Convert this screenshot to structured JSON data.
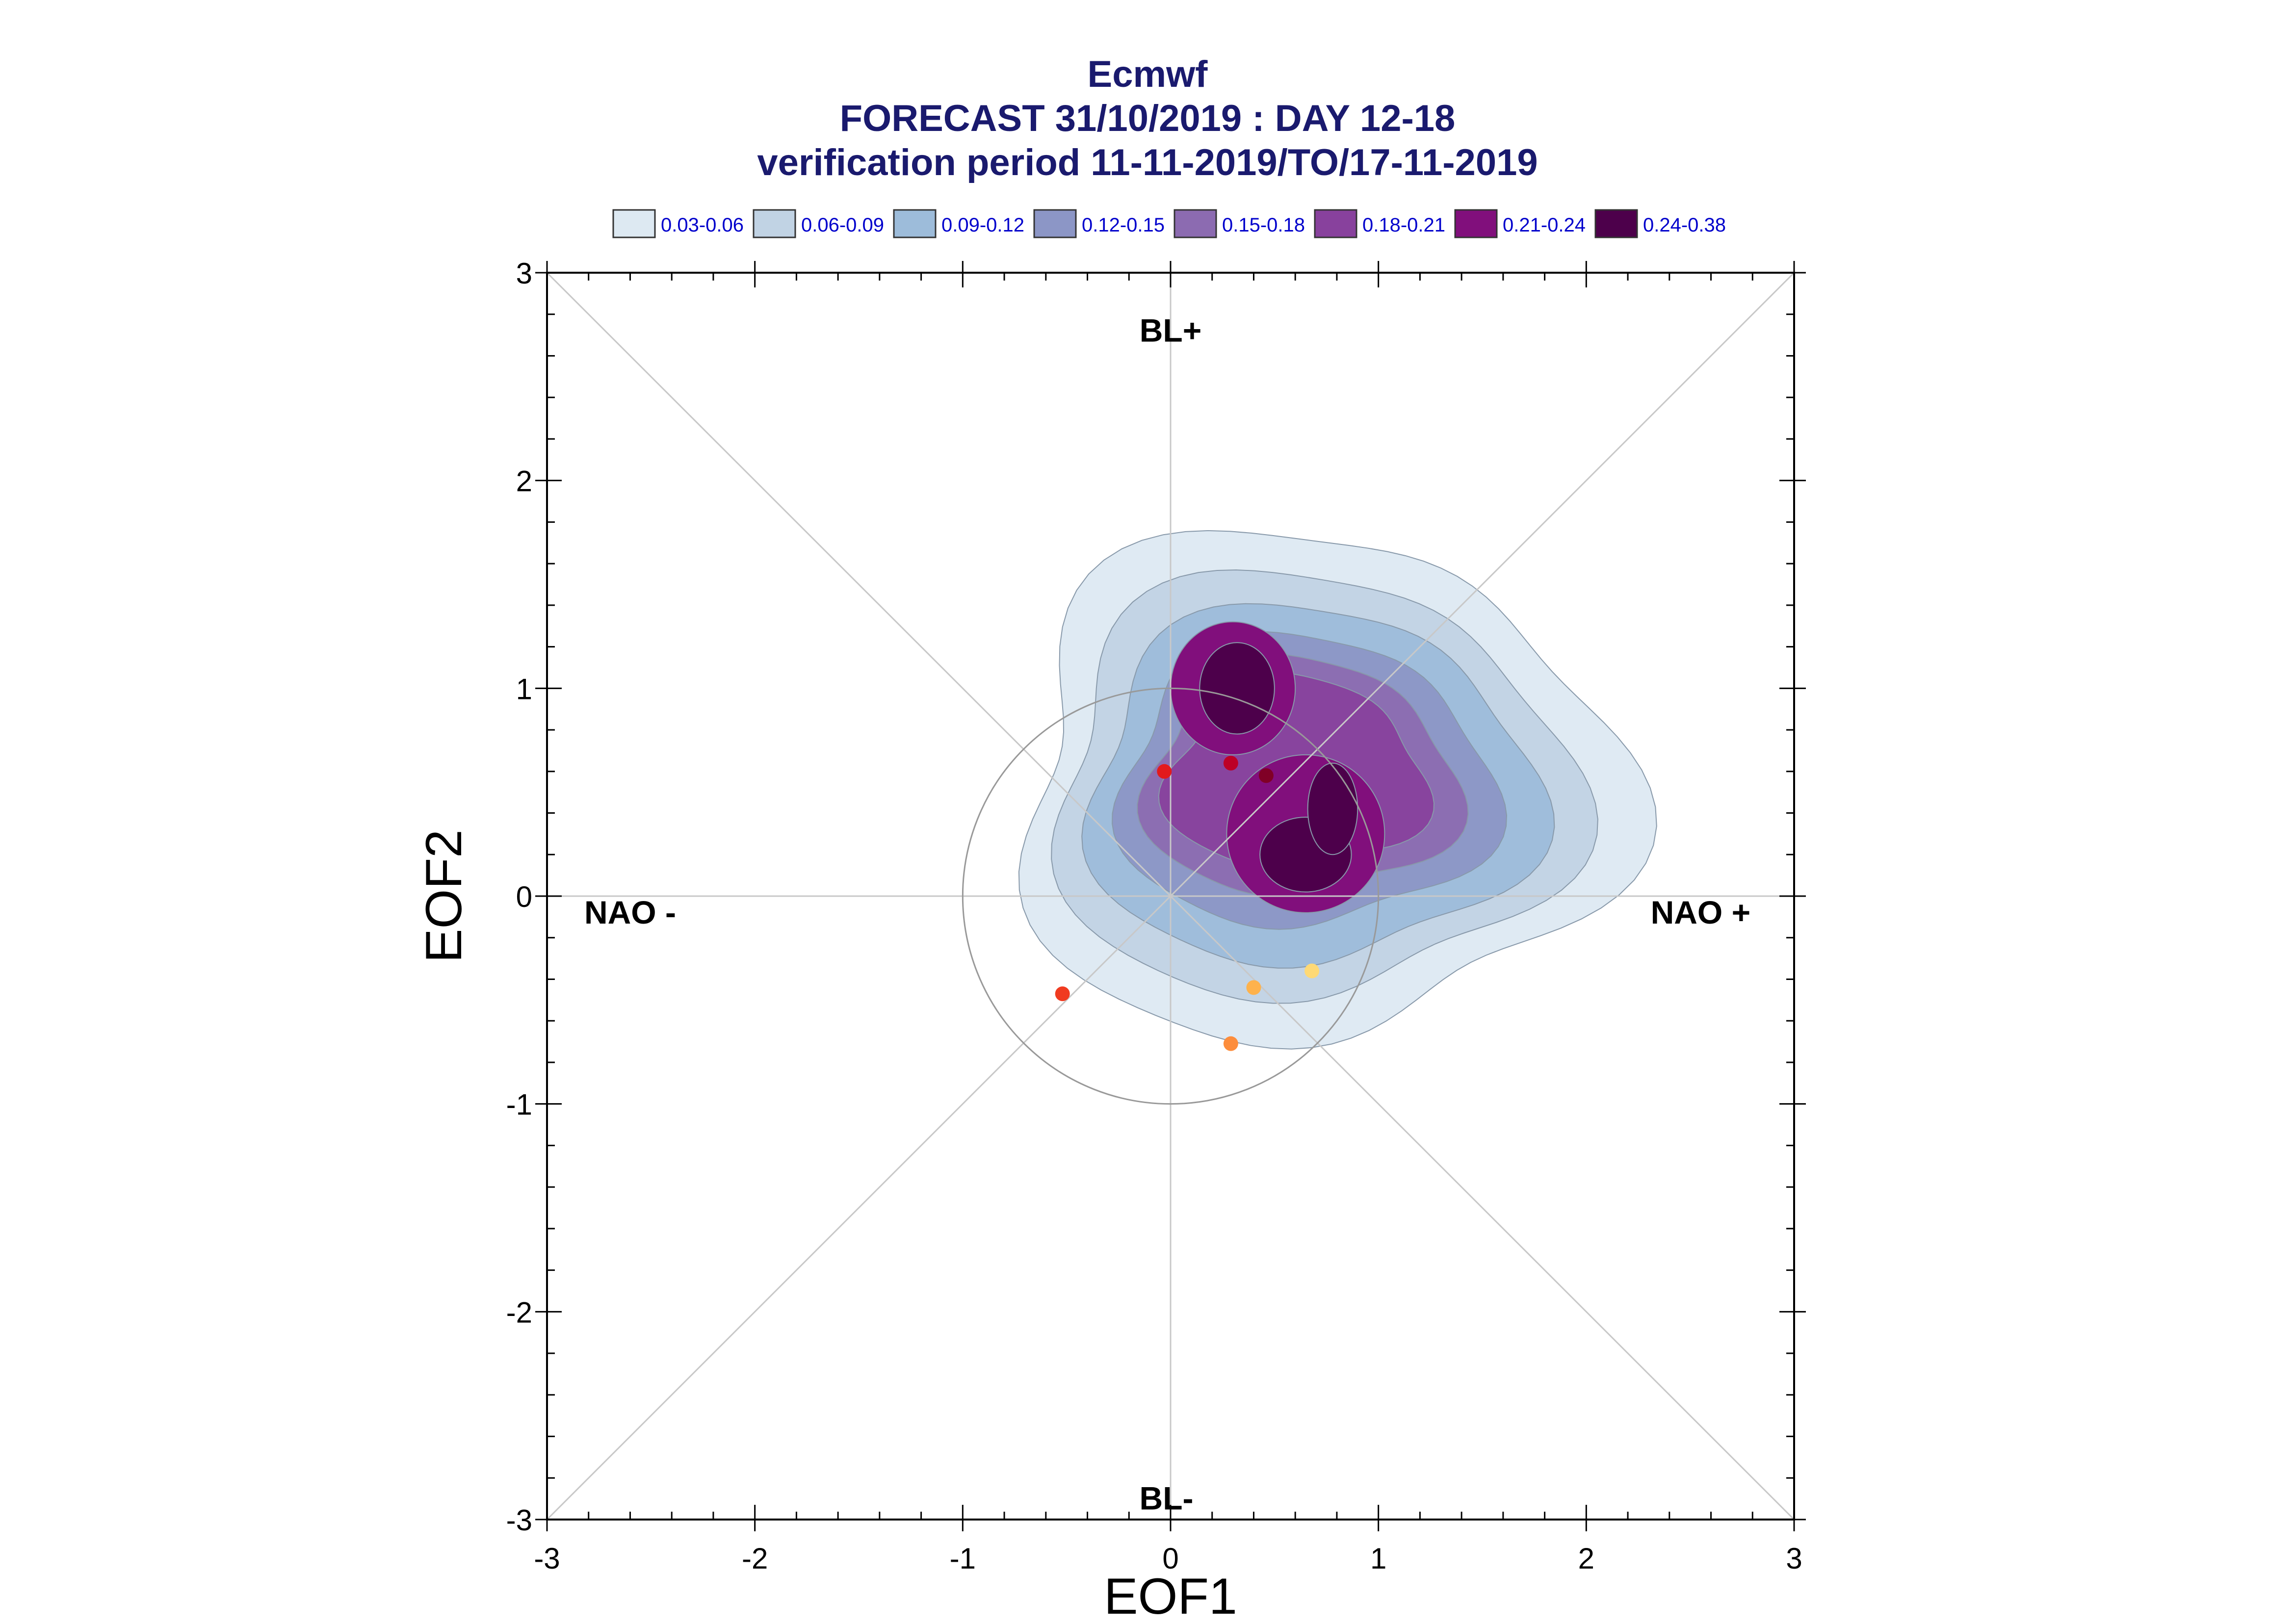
{
  "chart_data": {
    "type": "contour-density",
    "title_lines": [
      "Ecmwf",
      "FORECAST 31/10/2019 : DAY 12-18",
      "verification period 11-11-2019/TO/17-11-2019"
    ],
    "xlabel": "EOF1",
    "ylabel": "EOF2",
    "xlim": [
      -3,
      3
    ],
    "ylim": [
      -3,
      3
    ],
    "xticks": [
      "-3",
      "-2",
      "-1",
      "0",
      "1",
      "2",
      "3"
    ],
    "yticks": [
      "-3",
      "-2",
      "-1",
      "0",
      "1",
      "2",
      "3"
    ],
    "grid": false,
    "regime_labels": [
      {
        "text": "BL+",
        "x": 0.0,
        "y": 2.72
      },
      {
        "text": "BL-",
        "x": -0.02,
        "y": -2.9
      },
      {
        "text": "NAO -",
        "x": -2.6,
        "y": -0.08
      },
      {
        "text": "NAO +",
        "x": 2.55,
        "y": -0.08
      }
    ],
    "legend": [
      {
        "label": "0.03-0.06",
        "color": "#dde9f2"
      },
      {
        "label": "0.06-0.09",
        "color": "#c1d3e4"
      },
      {
        "label": "0.09-0.12",
        "color": "#9dbcda"
      },
      {
        "label": "0.12-0.15",
        "color": "#8c96c6"
      },
      {
        "label": "0.15-0.18",
        "color": "#8c6bb1"
      },
      {
        "label": "0.18-0.21",
        "color": "#88419d"
      },
      {
        "label": "0.21-0.24",
        "color": "#810f7c"
      },
      {
        "label": "0.24-0.38",
        "color": "#4d004b"
      }
    ],
    "unit_circle_radius": 1,
    "density_centers": [
      {
        "x": 0.3,
        "y": 1.0
      },
      {
        "x": 0.65,
        "y": 0.2
      }
    ],
    "points": [
      {
        "x": -0.03,
        "y": 0.6,
        "color": "#e31a1c"
      },
      {
        "x": 0.29,
        "y": 0.64,
        "color": "#bd0026"
      },
      {
        "x": 0.46,
        "y": 0.58,
        "color": "#800026"
      },
      {
        "x": -0.52,
        "y": -0.47,
        "color": "#f03b20"
      },
      {
        "x": 0.4,
        "y": -0.44,
        "color": "#feb24c"
      },
      {
        "x": 0.68,
        "y": -0.36,
        "color": "#fed976"
      },
      {
        "x": 0.29,
        "y": -0.71,
        "color": "#fd8d3c"
      }
    ]
  }
}
